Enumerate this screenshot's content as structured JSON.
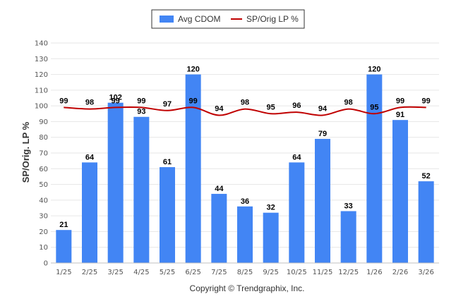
{
  "chart_data": {
    "type": "bar",
    "categories": [
      "1/25",
      "2/25",
      "3/25",
      "4/25",
      "5/25",
      "6/25",
      "7/25",
      "8/25",
      "9/25",
      "10/25",
      "11/25",
      "12/25",
      "1/26",
      "2/26",
      "3/26"
    ],
    "series": [
      {
        "name": "Avg CDOM",
        "type": "bar",
        "color": "#4285f4",
        "values": [
          21,
          64,
          102,
          93,
          61,
          120,
          44,
          36,
          32,
          64,
          79,
          33,
          120,
          91,
          52
        ]
      },
      {
        "name": "SP/Orig LP %",
        "type": "line",
        "color": "#c00000",
        "values": [
          99,
          98,
          99,
          99,
          97,
          99,
          94,
          98,
          95,
          96,
          94,
          98,
          95,
          99,
          99
        ]
      }
    ],
    "ylabel": "SP/Orig. LP %",
    "ylim": [
      0,
      140
    ],
    "yticks": [
      0,
      10,
      20,
      30,
      40,
      50,
      60,
      70,
      80,
      90,
      100,
      110,
      120,
      130,
      140
    ],
    "grid": true,
    "legend": "top-center",
    "credit": "Copyright © Trendgraphix, Inc."
  }
}
